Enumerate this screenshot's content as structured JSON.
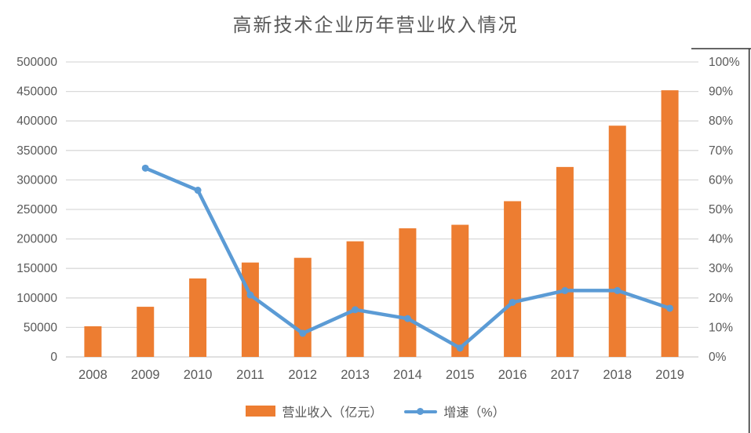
{
  "title": "高新技术企业历年营业收入情况",
  "legend": {
    "revenue_label": "营业收入（亿元）",
    "growth_label": "增速（%）"
  },
  "colors": {
    "bar": "#ED7D31",
    "line": "#5B9BD5",
    "gridline": "#D9D9D9",
    "axis_line": "#CDCDCD",
    "text": "#595959",
    "frame_border": "#333333"
  },
  "chart_data": {
    "type": "bar",
    "subtype": "combo-bar-line-dual-axis",
    "title": "高新技术企业历年营业收入情况",
    "categories": [
      "2008",
      "2009",
      "2010",
      "2011",
      "2012",
      "2013",
      "2014",
      "2015",
      "2016",
      "2017",
      "2018",
      "2019"
    ],
    "series": [
      {
        "name": "营业收入（亿元）",
        "type": "bar",
        "axis": "left",
        "values": [
          52000,
          85000,
          133000,
          160000,
          168000,
          196000,
          218000,
          224000,
          264000,
          322000,
          392000,
          452000
        ]
      },
      {
        "name": "增速（%）",
        "type": "line",
        "axis": "right",
        "values": [
          null,
          64,
          56.5,
          21,
          8,
          16,
          13,
          3,
          18.5,
          22.5,
          22.5,
          16.5
        ]
      }
    ],
    "left_axis": {
      "min": 0,
      "max": 500000,
      "step": 50000,
      "tick_labels": [
        "0",
        "50000",
        "100000",
        "150000",
        "200000",
        "250000",
        "300000",
        "350000",
        "400000",
        "450000",
        "500000"
      ]
    },
    "right_axis": {
      "min": 0,
      "max": 100,
      "step": 10,
      "tick_labels": [
        "0%",
        "10%",
        "20%",
        "30%",
        "40%",
        "50%",
        "60%",
        "70%",
        "80%",
        "90%",
        "100%"
      ]
    },
    "grid": "horizontal",
    "legend_position": "bottom"
  }
}
